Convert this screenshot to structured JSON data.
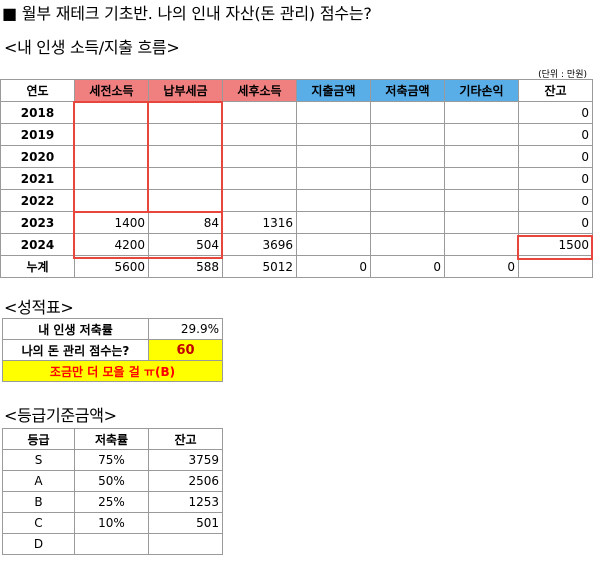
{
  "title": "■ 월부 재테크 기초반. 나의 인내 자산(돈 관리) 점수는?",
  "section1": "<내 인생 소득/지출 흐름>",
  "unit_note": "(단위 : 만원)",
  "main_table": {
    "headers": [
      "연도",
      "세전소득",
      "납부세금",
      "세후소득",
      "지출금액",
      "저축금액",
      "기타손익",
      "잔고"
    ],
    "rows": [
      [
        "2018",
        "",
        "",
        "",
        "",
        "",
        "",
        "0"
      ],
      [
        "2019",
        "",
        "",
        "",
        "",
        "",
        "",
        "0"
      ],
      [
        "2020",
        "",
        "",
        "",
        "",
        "",
        "",
        "0"
      ],
      [
        "2021",
        "",
        "",
        "",
        "",
        "",
        "",
        "0"
      ],
      [
        "2022",
        "",
        "",
        "",
        "",
        "",
        "",
        "0"
      ],
      [
        "2023",
        "1400",
        "84",
        "1316",
        "",
        "",
        "",
        "0"
      ],
      [
        "2024",
        "4200",
        "504",
        "3696",
        "",
        "",
        "",
        "1500"
      ],
      [
        "누계",
        "5600",
        "588",
        "5012",
        "0",
        "0",
        "0",
        ""
      ]
    ]
  },
  "section2": "<성적표>",
  "scorecard": {
    "savings_label": "내 인생 저축률",
    "savings_value": "29.9%",
    "score_label": "나의 돈 관리 점수는?",
    "score_value": "60",
    "message": "조금만 더 모을 걸 ㅠ(B)"
  },
  "section3": "<등급기준금액>",
  "grade_table": {
    "headers": [
      "등급",
      "저축률",
      "잔고"
    ],
    "rows": [
      [
        "S",
        "75%",
        "3759"
      ],
      [
        "A",
        "50%",
        "2506"
      ],
      [
        "B",
        "25%",
        "1253"
      ],
      [
        "C",
        "10%",
        "501"
      ],
      [
        "D",
        "",
        ""
      ]
    ]
  },
  "colors": {
    "income_header": "#f08080",
    "expense_header": "#5aaee8",
    "highlight_border": "#e8453c",
    "score_fill": "#ffff00"
  }
}
